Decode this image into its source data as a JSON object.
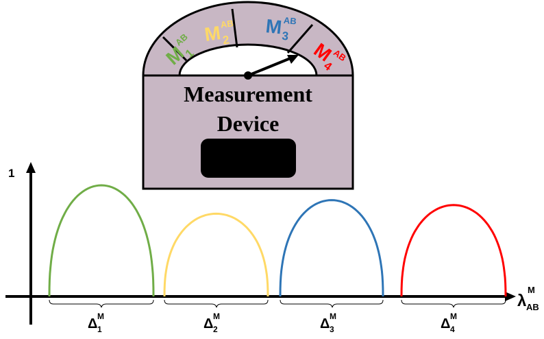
{
  "device": {
    "title_line1": "Measurement",
    "title_line2": "Device",
    "fill_color": "#c8b7c4",
    "screen_color": "#000000",
    "needle_color": "#000000",
    "segments": [
      {
        "base": "M",
        "sub": "1",
        "sup": "AB",
        "color": "#70ad47"
      },
      {
        "base": "M",
        "sub": "2",
        "sup": "AB",
        "color": "#ffd966"
      },
      {
        "base": "M",
        "sub": "3",
        "sup": "AB",
        "color": "#2e75b6"
      },
      {
        "base": "M",
        "sub": "4",
        "sup": "AB",
        "color": "#ff0000"
      }
    ]
  },
  "plot": {
    "y_tick_label": "1",
    "x_axis_label": {
      "base": "λ",
      "sub": "AB",
      "sup": "M"
    },
    "curves": [
      {
        "color": "#70ad47",
        "peak": 0.9
      },
      {
        "color": "#ffd966",
        "peak": 0.67
      },
      {
        "color": "#2e75b6",
        "peak": 0.78
      },
      {
        "color": "#ff0000",
        "peak": 0.74
      }
    ],
    "intervals": [
      {
        "base": "Δ",
        "sub": "1",
        "sup": "M"
      },
      {
        "base": "Δ",
        "sub": "2",
        "sup": "M"
      },
      {
        "base": "Δ",
        "sub": "3",
        "sup": "M"
      },
      {
        "base": "Δ",
        "sub": "4",
        "sup": "M"
      }
    ]
  }
}
